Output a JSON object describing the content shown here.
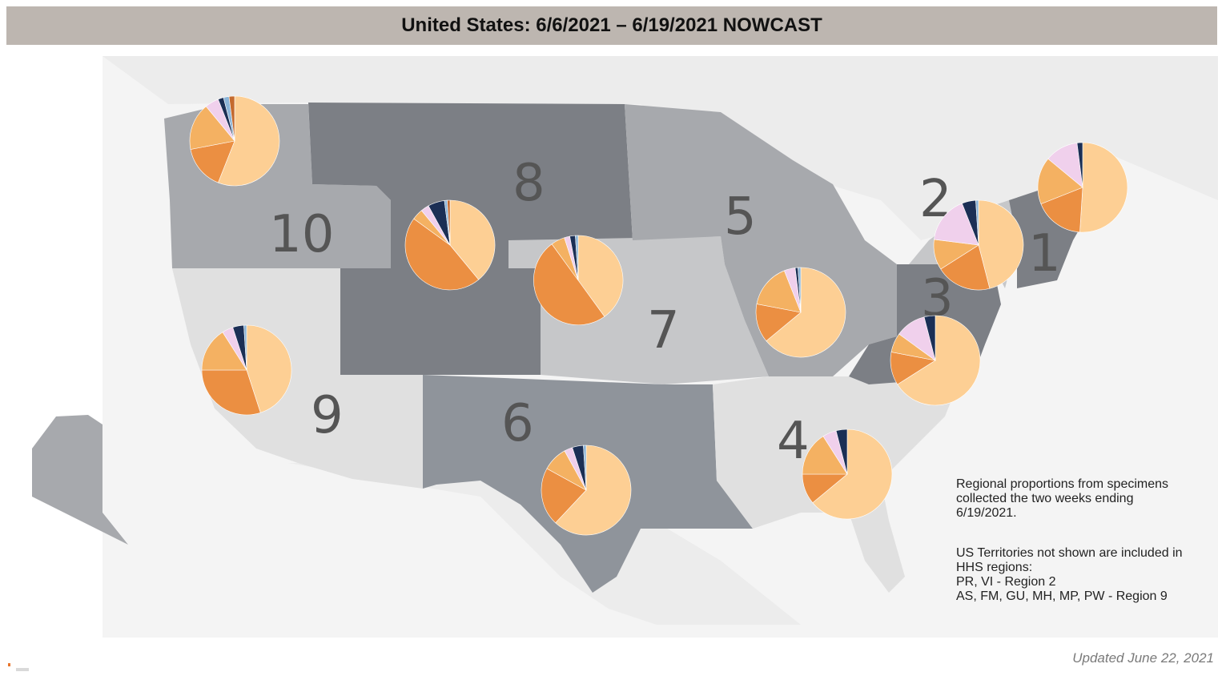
{
  "header": {
    "title": "United States: 6/6/2021 – 6/19/2021 NOWCAST"
  },
  "colors": {
    "background_land": "#ececec",
    "region_light": "#e0e0e0",
    "region_mid_light": "#c6c7c9",
    "region_mid": "#a7a9ad",
    "region_mid_dark": "#8f949b",
    "region_dark": "#7c7f85",
    "region_darker": "#6f7177",
    "pie_palette": [
      "#fdcf94",
      "#eb8f42",
      "#f4b162",
      "#f0d0ec",
      "#1b2f55",
      "#8cb5d8",
      "#c46a2e"
    ]
  },
  "regions": [
    {
      "label": "1"
    },
    {
      "label": "2"
    },
    {
      "label": "3"
    },
    {
      "label": "4"
    },
    {
      "label": "5"
    },
    {
      "label": "6"
    },
    {
      "label": "7"
    },
    {
      "label": "8"
    },
    {
      "label": "9"
    },
    {
      "label": "10"
    }
  ],
  "pies": [
    {
      "region": "10",
      "values": [
        0.56,
        0.16,
        0.17,
        0.05,
        0.02,
        0.02,
        0.02
      ]
    },
    {
      "region": "8",
      "values": [
        0.39,
        0.46,
        0.04,
        0.03,
        0.06,
        0.01,
        0.01
      ]
    },
    {
      "region": "8b",
      "values": [
        0.4,
        0.5,
        0.05,
        0.02,
        0.02,
        0.01,
        0.0
      ]
    },
    {
      "region": "9",
      "values": [
        0.45,
        0.3,
        0.16,
        0.04,
        0.04,
        0.01,
        0.0
      ]
    },
    {
      "region": "6",
      "values": [
        0.62,
        0.21,
        0.09,
        0.03,
        0.04,
        0.01,
        0.0
      ]
    },
    {
      "region": "5",
      "values": [
        0.64,
        0.14,
        0.16,
        0.04,
        0.01,
        0.01,
        0.0
      ]
    },
    {
      "region": "4",
      "values": [
        0.64,
        0.11,
        0.16,
        0.05,
        0.04,
        0.0,
        0.0
      ]
    },
    {
      "region": "3",
      "values": [
        0.66,
        0.12,
        0.07,
        0.11,
        0.04,
        0.0,
        0.0
      ]
    },
    {
      "region": "2",
      "values": [
        0.46,
        0.2,
        0.11,
        0.17,
        0.05,
        0.01,
        0.0
      ]
    },
    {
      "region": "1",
      "values": [
        0.51,
        0.18,
        0.17,
        0.12,
        0.02,
        0.0,
        0.0
      ]
    }
  ],
  "notes": {
    "proportions_line1": "Regional proportions from specimens",
    "proportions_line2": "collected the two weeks ending",
    "proportions_line3": "6/19/2021.",
    "territories_line1": "US Territories not shown are included in",
    "territories_line2": "HHS regions:",
    "territories_line3": "PR, VI - Region 2",
    "territories_line4": "AS, FM, GU, MH, MP, PW - Region 9"
  },
  "footer": {
    "updated": "Updated June 22, 2021"
  }
}
